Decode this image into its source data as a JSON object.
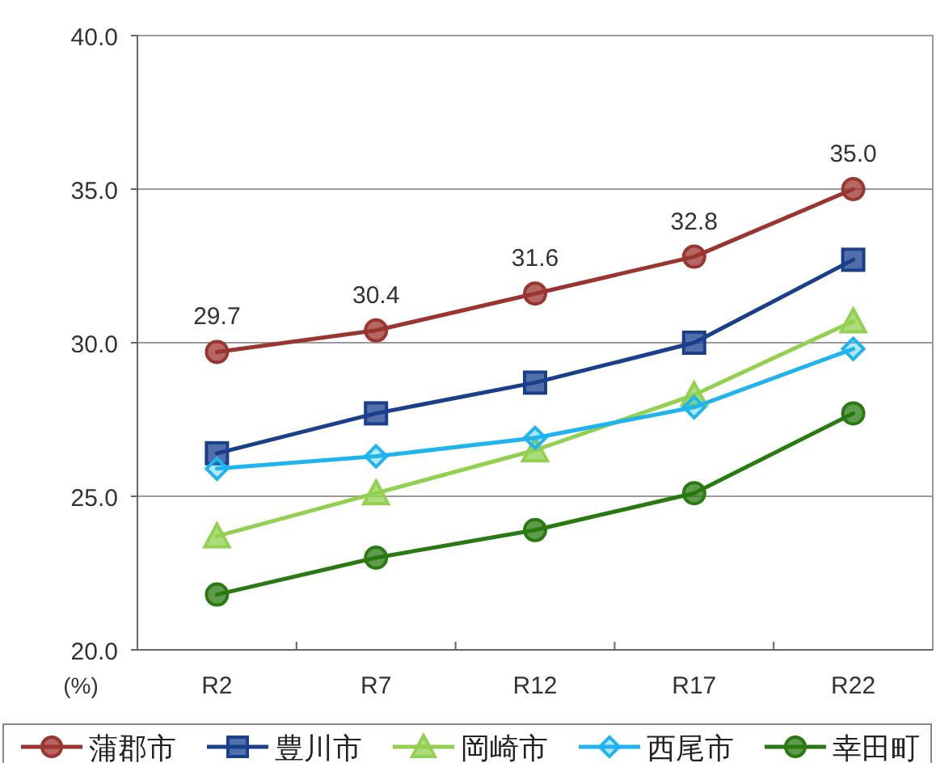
{
  "chart_data": {
    "type": "line",
    "categories": [
      "R2",
      "R7",
      "R12",
      "R17",
      "R22"
    ],
    "ylabel": "(%)",
    "ylim": [
      20.0,
      40.0
    ],
    "yticks": [
      {
        "value": 20,
        "label": "20.0"
      },
      {
        "value": 25,
        "label": "25.0"
      },
      {
        "value": 30,
        "label": "30.0"
      },
      {
        "value": 35,
        "label": "35.0"
      },
      {
        "value": 40,
        "label": "40.0"
      }
    ],
    "grid": "y",
    "legend": "bottom",
    "line_style": "solid",
    "series": [
      {
        "name": "蒲郡市",
        "color": "#9b3530",
        "marker": "circle",
        "values": [
          29.7,
          30.4,
          31.6,
          32.8,
          35.0
        ],
        "value_labels": [
          "29.7",
          "30.4",
          "31.6",
          "32.8",
          "35.0"
        ]
      },
      {
        "name": "豊川市",
        "color": "#1a3f8c",
        "marker": "square",
        "values": [
          26.4,
          27.7,
          28.7,
          30.0,
          32.7
        ]
      },
      {
        "name": "岡崎市",
        "color": "#92d050",
        "marker": "triangle",
        "values": [
          23.7,
          25.1,
          26.5,
          28.3,
          30.7
        ]
      },
      {
        "name": "西尾市",
        "color": "#1fb4ef",
        "marker": "diamond",
        "values": [
          25.9,
          26.3,
          26.9,
          27.9,
          29.8
        ]
      },
      {
        "name": "幸田町",
        "color": "#2a7a12",
        "marker": "circle",
        "values": [
          21.8,
          23.0,
          23.9,
          25.1,
          27.7
        ]
      }
    ]
  }
}
